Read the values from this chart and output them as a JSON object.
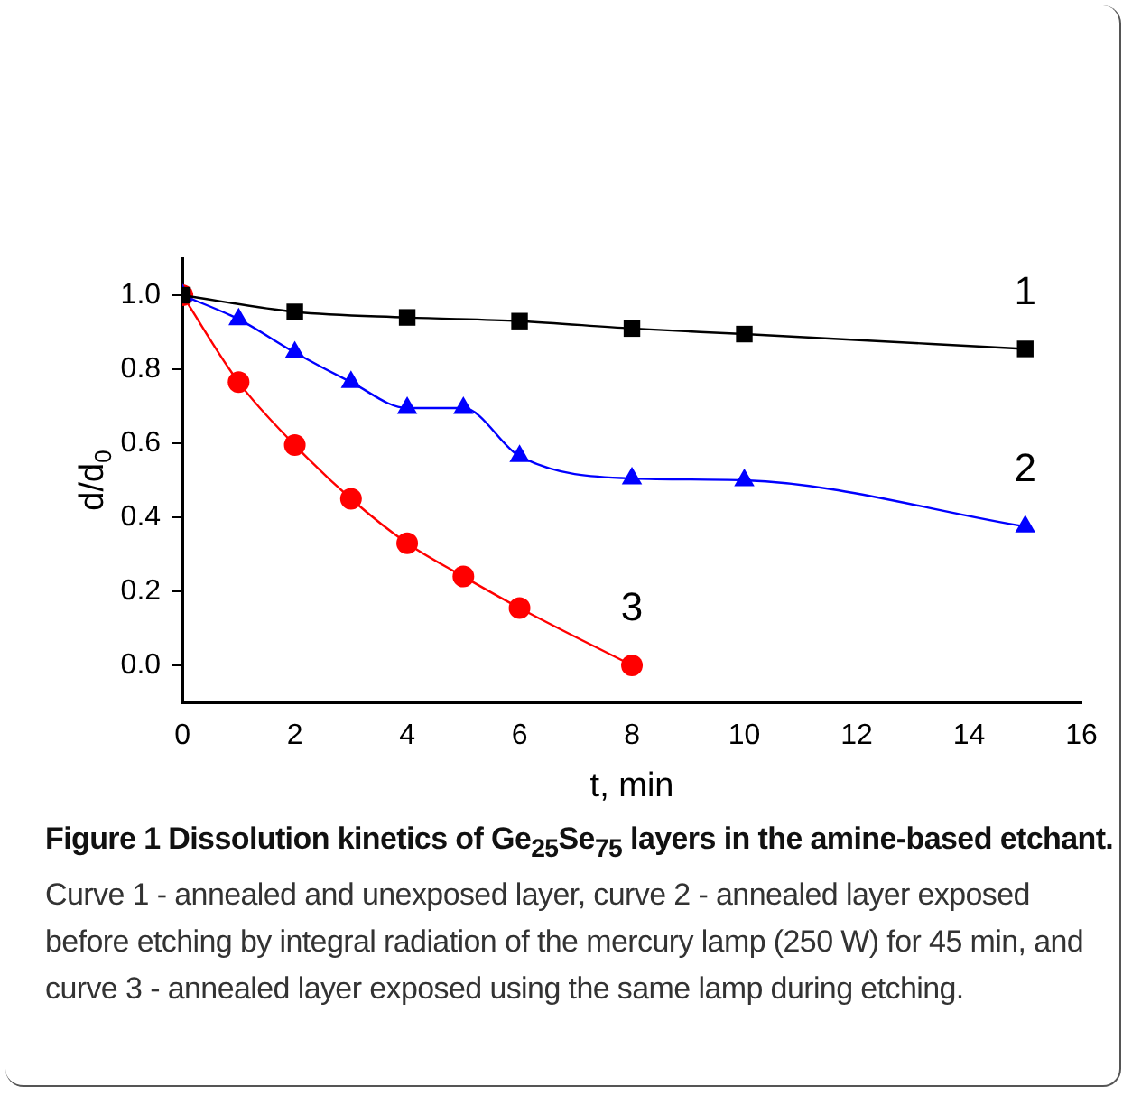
{
  "chart_data": {
    "type": "line",
    "xlabel": "t, min",
    "ylabel": "d/d$_{0}$",
    "xlim": [
      0,
      16
    ],
    "xticks": [
      0,
      2,
      4,
      6,
      8,
      10,
      12,
      14,
      16
    ],
    "ylim": [
      -0.1,
      1.1
    ],
    "yticks": [
      {
        "value": 0,
        "label": "0.0"
      },
      {
        "value": 0.2,
        "label": "0.2"
      },
      {
        "value": 0.4,
        "label": "0.4"
      },
      {
        "value": 0.6,
        "label": "0.6"
      },
      {
        "value": 0.8,
        "label": "0.8"
      },
      {
        "value": 1,
        "label": "1.0"
      }
    ],
    "series": [
      {
        "name": "1",
        "color": "#000000",
        "marker": "square",
        "x": [
          0,
          2,
          4,
          6,
          8,
          10,
          15
        ],
        "values": [
          1.0,
          0.955,
          0.94,
          0.93,
          0.91,
          0.895,
          0.855
        ]
      },
      {
        "name": "2",
        "color": "#0000ff",
        "marker": "triangle",
        "x": [
          0,
          1,
          2,
          3,
          4,
          5,
          6,
          8,
          10,
          15
        ],
        "values": [
          1.0,
          0.935,
          0.845,
          0.765,
          0.695,
          0.695,
          0.565,
          0.505,
          0.5,
          0.375
        ]
      },
      {
        "name": "3",
        "color": "#ff0000",
        "marker": "circle",
        "x": [
          0,
          1,
          2,
          3,
          4,
          5,
          6,
          8
        ],
        "values": [
          1.0,
          0.765,
          0.595,
          0.45,
          0.33,
          0.24,
          0.155,
          0.0
        ]
      }
    ],
    "annotations": [
      "Figure 1 Dissolution kinetics of Ge$_{25}$Se$_{75}$ layers in the amine-based etchant.",
      "Curve 1 - annealed and unexposed layer, curve 2 - annealed layer exposed before etching by integral radiation of the mercury lamp (250 W) for 45 min, and curve 3 - annealed layer exposed using the same lamp during etching."
    ],
    "legend": false,
    "grid": false,
    "line_style": "solid"
  }
}
